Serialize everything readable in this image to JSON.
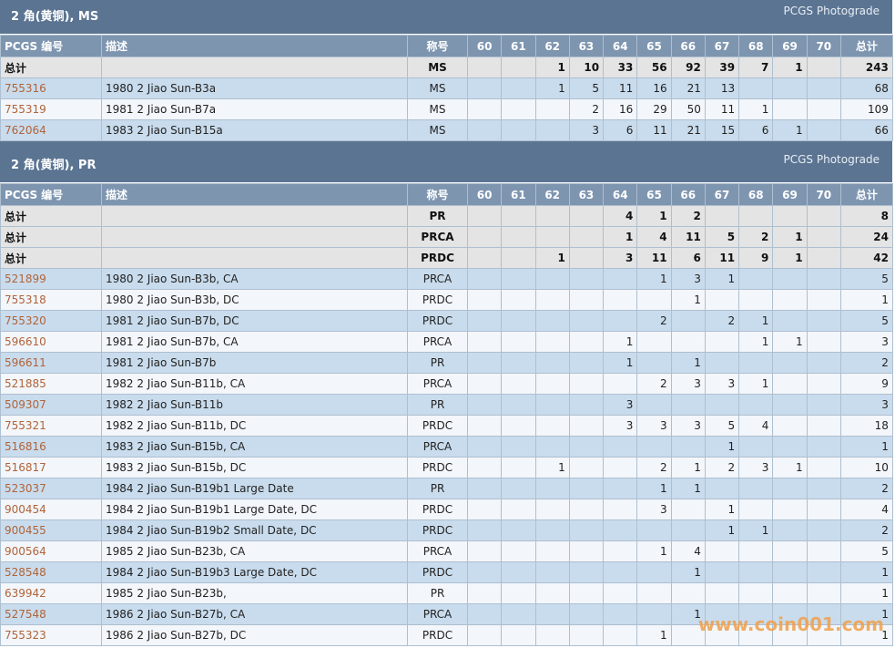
{
  "sections": [
    {
      "title": "2 角(黄铜), MS",
      "link": "PCGS Photograde",
      "columns": [
        "PCGS 编号",
        "描述",
        "称号",
        "60",
        "61",
        "62",
        "63",
        "64",
        "65",
        "66",
        "67",
        "68",
        "69",
        "70",
        "总计"
      ],
      "totals": [
        [
          "总计",
          null,
          "MS",
          null,
          null,
          1,
          10,
          33,
          56,
          92,
          39,
          7,
          1,
          null,
          243
        ]
      ],
      "rows": [
        [
          "755316",
          "1980 2 Jiao Sun-B3a",
          "MS",
          null,
          null,
          1,
          5,
          11,
          16,
          21,
          13,
          null,
          null,
          null,
          68
        ],
        [
          "755319",
          "1981 2 Jiao Sun-B7a",
          "MS",
          null,
          null,
          null,
          2,
          16,
          29,
          50,
          11,
          1,
          null,
          null,
          109
        ],
        [
          "762064",
          "1983 2 Jiao Sun-B15a",
          "MS",
          null,
          null,
          null,
          3,
          6,
          11,
          21,
          15,
          6,
          1,
          null,
          66
        ]
      ]
    },
    {
      "title": "2 角(黄铜), PR",
      "link": "PCGS Photograde",
      "columns": [
        "PCGS 编号",
        "描述",
        "称号",
        "60",
        "61",
        "62",
        "63",
        "64",
        "65",
        "66",
        "67",
        "68",
        "69",
        "70",
        "总计"
      ],
      "totals": [
        [
          "总计",
          null,
          "PR",
          null,
          null,
          null,
          null,
          4,
          1,
          2,
          null,
          null,
          null,
          null,
          8
        ],
        [
          "总计",
          null,
          "PRCA",
          null,
          null,
          null,
          null,
          1,
          4,
          11,
          5,
          2,
          1,
          null,
          24
        ],
        [
          "总计",
          null,
          "PRDC",
          null,
          null,
          1,
          null,
          3,
          11,
          6,
          11,
          9,
          1,
          null,
          42
        ]
      ],
      "rows": [
        [
          "521899",
          "1980 2 Jiao Sun-B3b, CA",
          "PRCA",
          null,
          null,
          null,
          null,
          null,
          1,
          3,
          1,
          null,
          null,
          null,
          5
        ],
        [
          "755318",
          "1980 2 Jiao Sun-B3b, DC",
          "PRDC",
          null,
          null,
          null,
          null,
          null,
          null,
          1,
          null,
          null,
          null,
          null,
          1
        ],
        [
          "755320",
          "1981 2 Jiao Sun-B7b, DC",
          "PRDC",
          null,
          null,
          null,
          null,
          null,
          2,
          null,
          2,
          1,
          null,
          null,
          5
        ],
        [
          "596610",
          "1981 2 Jiao Sun-B7b, CA",
          "PRCA",
          null,
          null,
          null,
          null,
          1,
          null,
          null,
          null,
          1,
          1,
          null,
          3
        ],
        [
          "596611",
          "1981 2 Jiao Sun-B7b",
          "PR",
          null,
          null,
          null,
          null,
          1,
          null,
          1,
          null,
          null,
          null,
          null,
          2
        ],
        [
          "521885",
          "1982 2 Jiao Sun-B11b, CA",
          "PRCA",
          null,
          null,
          null,
          null,
          null,
          2,
          3,
          3,
          1,
          null,
          null,
          9
        ],
        [
          "509307",
          "1982 2 Jiao Sun-B11b",
          "PR",
          null,
          null,
          null,
          null,
          3,
          null,
          null,
          null,
          null,
          null,
          null,
          3
        ],
        [
          "755321",
          "1982 2 Jiao Sun-B11b, DC",
          "PRDC",
          null,
          null,
          null,
          null,
          3,
          3,
          3,
          5,
          4,
          null,
          null,
          18
        ],
        [
          "516816",
          "1983 2 Jiao Sun-B15b, CA",
          "PRCA",
          null,
          null,
          null,
          null,
          null,
          null,
          null,
          1,
          null,
          null,
          null,
          1
        ],
        [
          "516817",
          "1983 2 Jiao Sun-B15b, DC",
          "PRDC",
          null,
          null,
          1,
          null,
          null,
          2,
          1,
          2,
          3,
          1,
          null,
          10
        ],
        [
          "523037",
          "1984 2 Jiao Sun-B19b1 Large Date",
          "PR",
          null,
          null,
          null,
          null,
          null,
          1,
          1,
          null,
          null,
          null,
          null,
          2
        ],
        [
          "900454",
          "1984 2 Jiao Sun-B19b1 Large Date, DC",
          "PRDC",
          null,
          null,
          null,
          null,
          null,
          3,
          null,
          1,
          null,
          null,
          null,
          4
        ],
        [
          "900455",
          "1984 2 Jiao Sun-B19b2 Small Date, DC",
          "PRDC",
          null,
          null,
          null,
          null,
          null,
          null,
          null,
          1,
          1,
          null,
          null,
          2
        ],
        [
          "900564",
          "1985 2 Jiao Sun-B23b, CA",
          "PRCA",
          null,
          null,
          null,
          null,
          null,
          1,
          4,
          null,
          null,
          null,
          null,
          5
        ],
        [
          "528548",
          "1984 2 Jiao Sun-B19b3 Large Date, DC",
          "PRDC",
          null,
          null,
          null,
          null,
          null,
          null,
          1,
          null,
          null,
          null,
          null,
          1
        ],
        [
          "639942",
          "1985 2 Jiao Sun-B23b,",
          "PR",
          null,
          null,
          null,
          null,
          null,
          null,
          null,
          null,
          null,
          null,
          null,
          1
        ],
        [
          "527548",
          "1986 2 Jiao Sun-B27b, CA",
          "PRCA",
          null,
          null,
          null,
          null,
          null,
          null,
          1,
          null,
          null,
          null,
          null,
          1
        ],
        [
          "755323",
          "1986 2 Jiao Sun-B27b, DC",
          "PRDC",
          null,
          null,
          null,
          null,
          null,
          1,
          null,
          null,
          null,
          null,
          null,
          1
        ]
      ]
    }
  ],
  "watermark": "www.coin001.com"
}
